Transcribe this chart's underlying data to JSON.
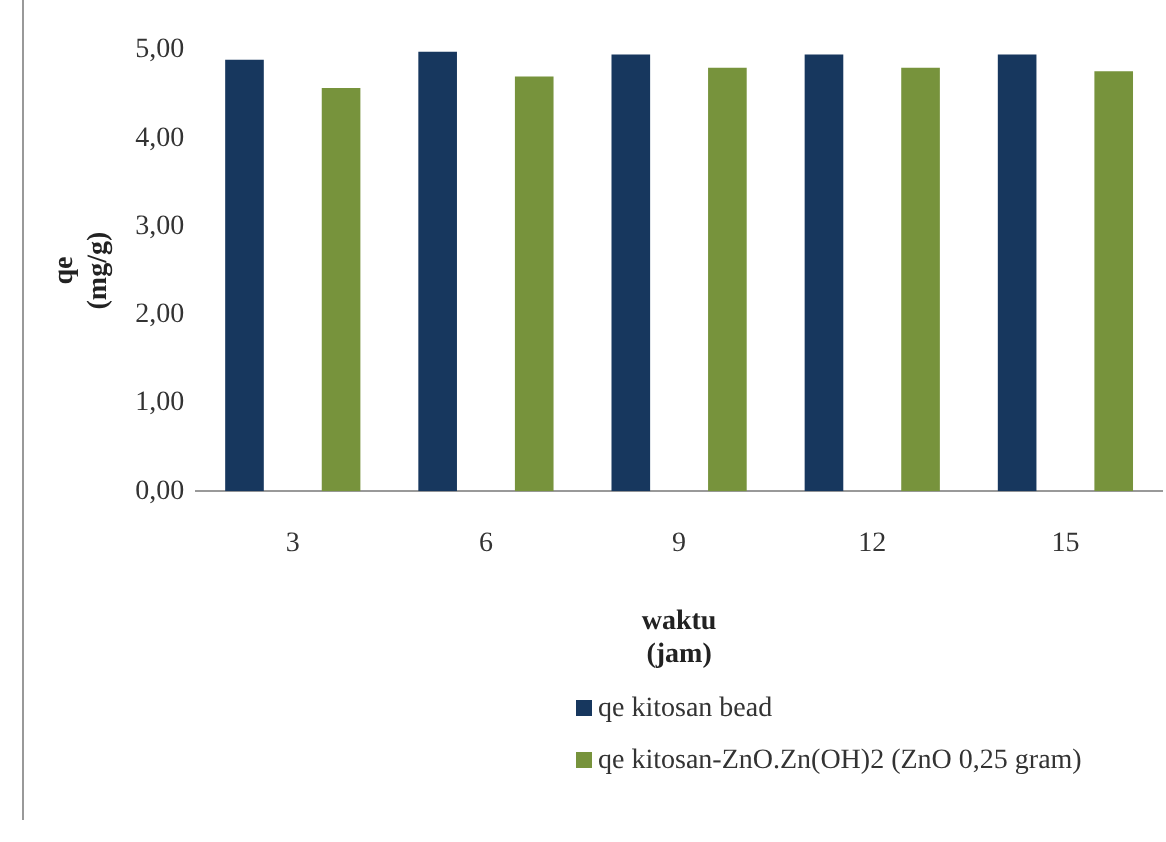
{
  "chart_data": {
    "type": "bar",
    "xlabel": "waktu\n(jam)",
    "ylabel": "qe\n(mg/g)",
    "categories": [
      "3",
      "6",
      "9",
      "12",
      "15"
    ],
    "series": [
      {
        "name": "qe kitosan bead",
        "color": "#17375e",
        "values": [
          4.89,
          4.98,
          4.95,
          4.95,
          4.95
        ]
      },
      {
        "name": "qe kitosan-ZnO.Zn(OH)2 (ZnO 0,25 gram)",
        "color": "#77933c",
        "values": [
          4.57,
          4.7,
          4.8,
          4.8,
          4.76
        ]
      }
    ],
    "ylim": [
      0,
      5
    ],
    "yticks": [
      {
        "value": 0,
        "label": "0,00"
      },
      {
        "value": 1,
        "label": "1,00"
      },
      {
        "value": 2,
        "label": "2,00"
      },
      {
        "value": 3,
        "label": "3,00"
      },
      {
        "value": 4,
        "label": "4,00"
      },
      {
        "value": 5,
        "label": "5,00"
      }
    ],
    "grid": false,
    "legend": "bottom"
  }
}
